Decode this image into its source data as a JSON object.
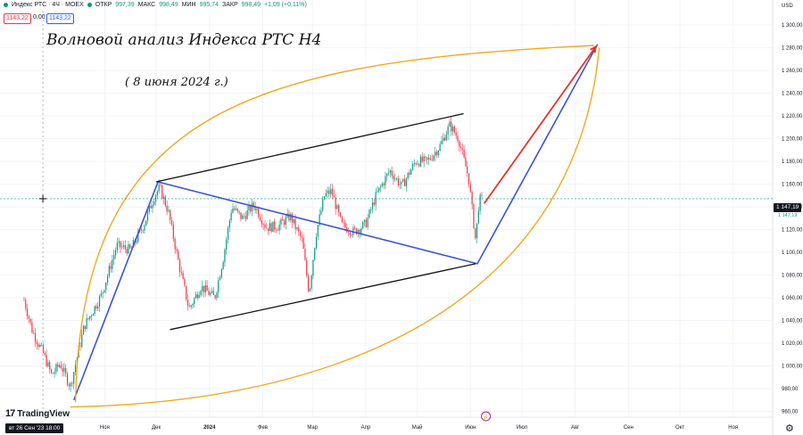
{
  "header": {
    "symbol": "Индекс РТС · 4Ч · MOEX",
    "open_label": "ОТКР",
    "open": "997,39",
    "high_label": "МАКС",
    "high": "998,49",
    "low_label": "МИН",
    "low": "995,74",
    "close_label": "ЗАКР",
    "close": "998,49",
    "change": "+1,09 (+0,11%)"
  },
  "quote": {
    "bid": "1143,22",
    "spread": "0,00",
    "ask": "1143,22"
  },
  "currency": "USD",
  "annotations": {
    "title": "Волновой анализ Индекса РТС Н4",
    "date": "( 8 июня 2024 г.)"
  },
  "brand": "TradingView",
  "cursor_date": "вт 26 Сен '23   18:00",
  "last_price": "1 147,19",
  "last_price_sub": "1 147,19",
  "colors": {
    "up": "#089981",
    "down": "#f23645",
    "wave": "#3a52d8",
    "arrow": "#e8312c",
    "arc": "#f0a91e",
    "channel": "#111111"
  },
  "chart_data": {
    "type": "candlestick",
    "yrange": [
      955,
      1322
    ],
    "yticks": [
      "1 320,00",
      "1 300,00",
      "1 280,00",
      "1 260,00",
      "1 240,00",
      "1 220,00",
      "1 200,00",
      "1 180,00",
      "1 160,00",
      "1 140,00",
      "1 120,00",
      "1 100,00",
      "1 080,00",
      "1 060,00",
      "1 040,00",
      "1 020,00",
      "1 000,00",
      "980,00",
      "960,00"
    ],
    "xticks": [
      "Ноя",
      "Дек",
      "2024",
      "Фев",
      "Мар",
      "Апр",
      "Май",
      "Июн",
      "Июл",
      "Авг",
      "Сен",
      "Окт",
      "Ноя"
    ],
    "price_path": [
      [
        "2023-09-15",
        1058
      ],
      [
        "2023-09-20",
        1030
      ],
      [
        "2023-09-26",
        1012
      ],
      [
        "2023-10-01",
        992
      ],
      [
        "2023-10-06",
        1002
      ],
      [
        "2023-10-12",
        982
      ],
      [
        "2023-10-20",
        1035
      ],
      [
        "2023-10-30",
        1062
      ],
      [
        "2023-11-08",
        1106
      ],
      [
        "2023-11-16",
        1102
      ],
      [
        "2023-11-24",
        1125
      ],
      [
        "2023-11-30",
        1150
      ],
      [
        "2023-12-03",
        1157
      ],
      [
        "2023-12-08",
        1136
      ],
      [
        "2023-12-13",
        1098
      ],
      [
        "2023-12-20",
        1050
      ],
      [
        "2023-12-27",
        1070
      ],
      [
        "2024-01-04",
        1060
      ],
      [
        "2024-01-09",
        1095
      ],
      [
        "2024-01-14",
        1140
      ],
      [
        "2024-01-20",
        1130
      ],
      [
        "2024-01-27",
        1142
      ],
      [
        "2024-02-03",
        1122
      ],
      [
        "2024-02-10",
        1123
      ],
      [
        "2024-02-17",
        1132
      ],
      [
        "2024-02-24",
        1110
      ],
      [
        "2024-02-28",
        1064
      ],
      [
        "2024-03-03",
        1116
      ],
      [
        "2024-03-08",
        1150
      ],
      [
        "2024-03-12",
        1154
      ],
      [
        "2024-03-18",
        1124
      ],
      [
        "2024-03-25",
        1118
      ],
      [
        "2024-04-01",
        1125
      ],
      [
        "2024-04-07",
        1150
      ],
      [
        "2024-04-15",
        1172
      ],
      [
        "2024-04-22",
        1158
      ],
      [
        "2024-04-30",
        1180
      ],
      [
        "2024-05-07",
        1180
      ],
      [
        "2024-05-14",
        1193
      ],
      [
        "2024-05-20",
        1212
      ],
      [
        "2024-05-25",
        1200
      ],
      [
        "2024-05-31",
        1165
      ],
      [
        "2024-06-04",
        1110
      ],
      [
        "2024-06-06",
        1146
      ],
      [
        "2024-06-08",
        1147
      ]
    ],
    "drawings": {
      "blue_wave": [
        [
          "2023-10-14",
          970
        ],
        [
          "2023-12-02",
          1162
        ],
        [
          "2024-06-05",
          1090
        ],
        [
          "2024-08-14",
          1283
        ]
      ],
      "red_arrow": [
        [
          "2024-06-09",
          1143
        ],
        [
          "2024-08-13",
          1281
        ]
      ],
      "channel_upper": [
        [
          "2023-12-01",
          1162
        ],
        [
          "2024-05-28",
          1222
        ]
      ],
      "channel_lower": [
        [
          "2023-12-09",
          1032
        ],
        [
          "2024-06-04",
          1090
        ]
      ],
      "upper_arc_start": [
        "2023-10-15",
        968
      ],
      "upper_arc_end": [
        "2024-08-12",
        1282
      ],
      "lower_arc_start": [
        "2023-10-12",
        964
      ],
      "lower_arc_end": [
        "2024-08-15",
        1280
      ]
    }
  }
}
